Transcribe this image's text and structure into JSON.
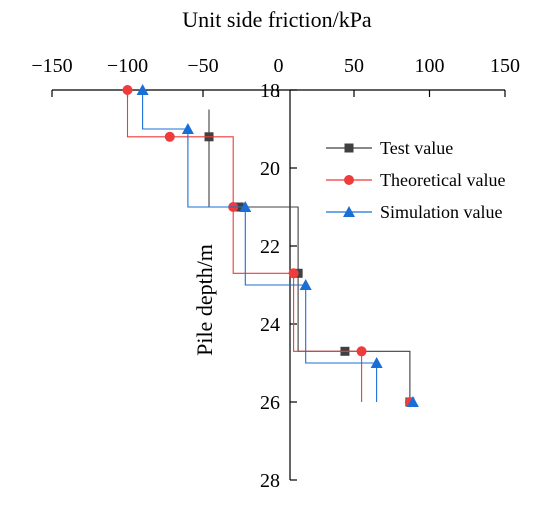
{
  "chart_data": {
    "type": "line",
    "xlabel": "Unit side friction/kPa",
    "ylabel": "Pile depth/m",
    "xlim": [
      -150,
      150
    ],
    "ylim": [
      18,
      28
    ],
    "y_inverted": true,
    "x_axis_position": "top",
    "x_ticks": [
      -150,
      -100,
      -50,
      0,
      50,
      100,
      150
    ],
    "x_tick_labels": [
      "−150",
      "−100",
      "−50",
      "0",
      "50",
      "100",
      "150"
    ],
    "y_ticks": [
      18,
      20,
      22,
      24,
      26,
      28
    ],
    "y_tick_labels": [
      "18",
      "20",
      "22",
      "24",
      "26",
      "28"
    ],
    "legend_position": "right",
    "series": [
      {
        "name": "Test value",
        "color": "#404040",
        "marker": "square",
        "steps": [
          {
            "value": -46,
            "from": 18.5,
            "to": 21
          },
          {
            "value": 13,
            "from": 21,
            "to": 24.7
          },
          {
            "value": 87,
            "from": 24.7,
            "to": 26
          }
        ],
        "points": [
          [
            -46,
            19.2
          ],
          [
            -26,
            21
          ],
          [
            13,
            22.7
          ],
          [
            44,
            24.7
          ],
          [
            87,
            26
          ]
        ]
      },
      {
        "name": "Theoretical value",
        "color": "#ee3b3b",
        "marker": "circle",
        "steps": [
          {
            "value": -100,
            "from": 18,
            "to": 19.2
          },
          {
            "value": -30,
            "from": 19.2,
            "to": 22.7
          },
          {
            "value": 10,
            "from": 22.7,
            "to": 24.7
          },
          {
            "value": 55,
            "from": 24.7,
            "to": 26
          }
        ],
        "points": [
          [
            -100,
            18
          ],
          [
            -72,
            19.2
          ],
          [
            -30,
            21
          ],
          [
            10,
            22.7
          ],
          [
            55,
            24.7
          ],
          [
            87,
            26
          ]
        ]
      },
      {
        "name": "Simulation value",
        "color": "#1a6fd6",
        "marker": "triangle",
        "steps": [
          {
            "value": -90,
            "from": 18,
            "to": 19
          },
          {
            "value": -60,
            "from": 19,
            "to": 21
          },
          {
            "value": -22,
            "from": 21,
            "to": 23
          },
          {
            "value": 18,
            "from": 23,
            "to": 25
          },
          {
            "value": 65,
            "from": 25,
            "to": 26
          }
        ],
        "points": [
          [
            -90,
            18
          ],
          [
            -60,
            19
          ],
          [
            -22,
            21
          ],
          [
            18,
            23
          ],
          [
            65,
            25
          ],
          [
            89,
            26
          ]
        ]
      }
    ]
  }
}
